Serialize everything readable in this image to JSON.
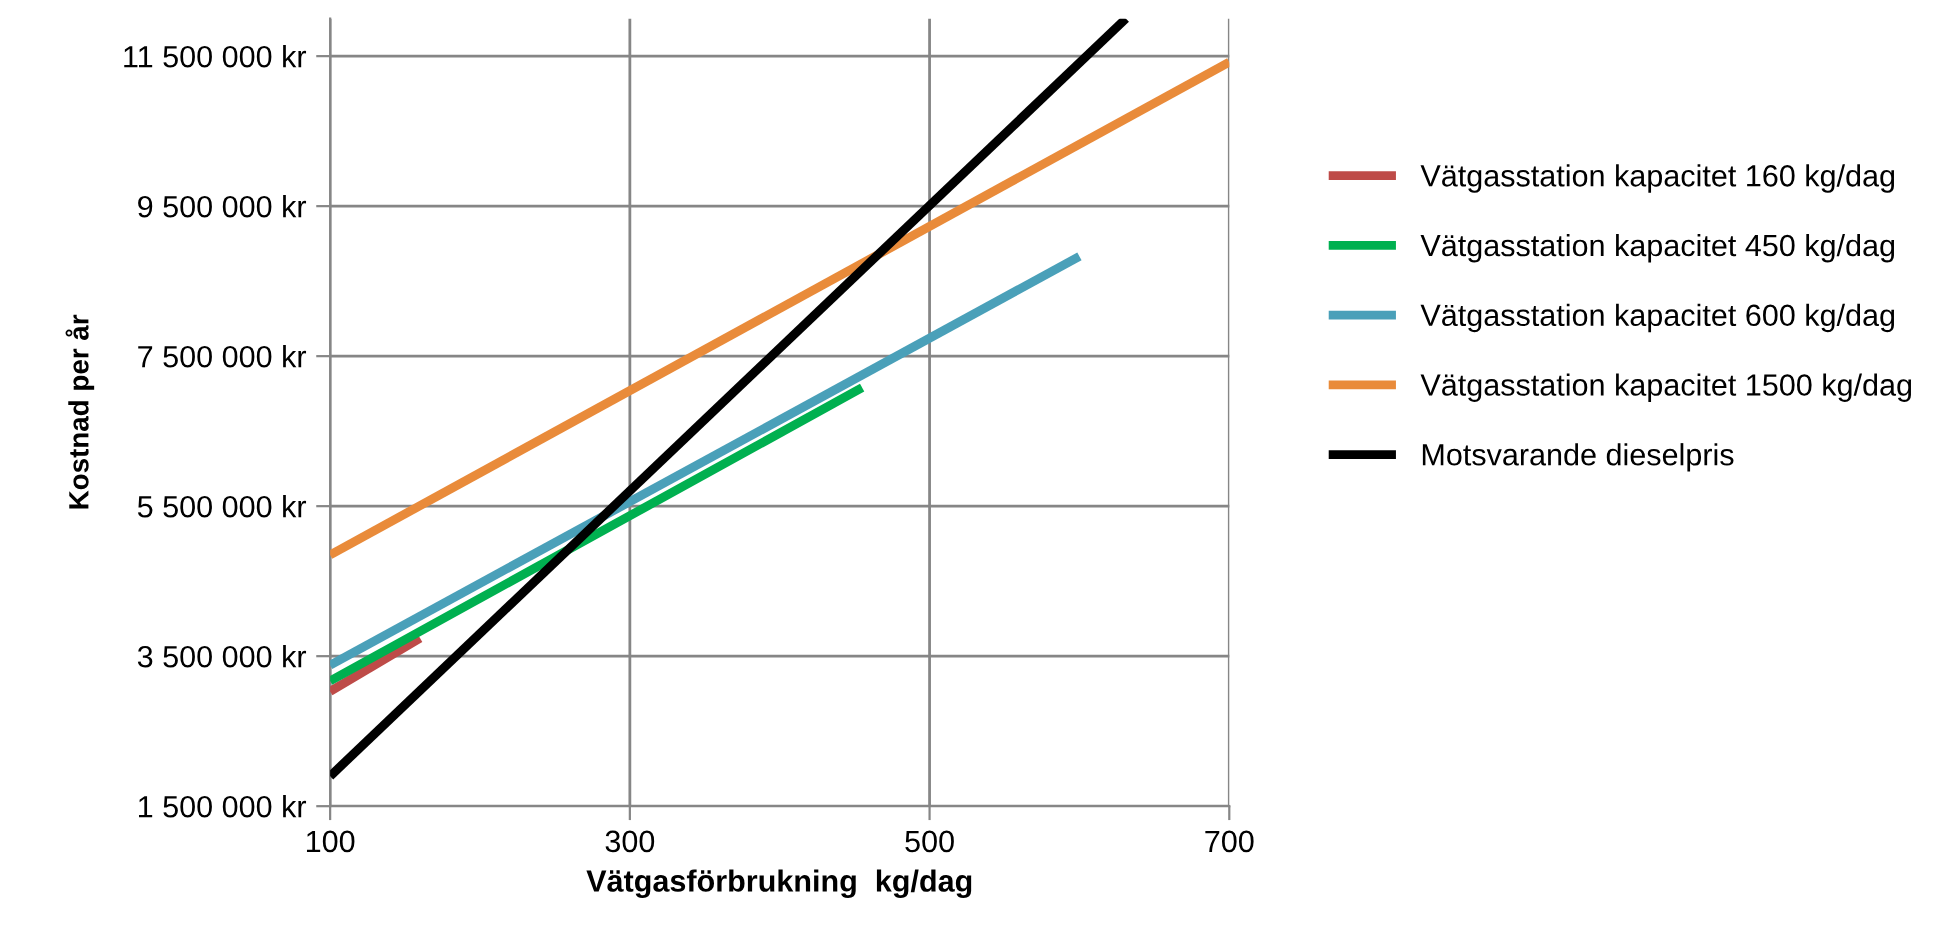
{
  "chart_data": {
    "type": "line",
    "xlabel": "Vätgasförbrukning  kg/dag",
    "ylabel": "Kostnad per år",
    "xlim": [
      100,
      700
    ],
    "xticks": [
      100,
      300,
      500,
      700
    ],
    "ylim": [
      1500000,
      12000000
    ],
    "yticks": [
      {
        "value": 1500000,
        "label": "1 500 000 kr"
      },
      {
        "value": 3500000,
        "label": "3 500 000 kr"
      },
      {
        "value": 5500000,
        "label": "5 500 000 kr"
      },
      {
        "value": 7500000,
        "label": "7 500 000 kr"
      },
      {
        "value": 9500000,
        "label": "9 500 000 kr"
      },
      {
        "value": 11500000,
        "label": "11 500 000 kr"
      }
    ],
    "grid": true,
    "legend": "right",
    "marker": "none",
    "line_style": "solid",
    "series": [
      {
        "name": "Vätgasstation kapacitet 160 kg/dag",
        "color": "#be4b48",
        "x": [
          100,
          160
        ],
        "values": [
          3030000,
          3740000
        ]
      },
      {
        "name": "Vätgasstation kapacitet 450 kg/dag",
        "color": "#00b050",
        "x": [
          100,
          455
        ],
        "values": [
          3170000,
          7080000
        ]
      },
      {
        "name": "Vätgasstation kapacitet 600 kg/dag",
        "color": "#4aa0b9",
        "x": [
          100,
          600
        ],
        "values": [
          3380000,
          8830000
        ]
      },
      {
        "name": "Vätgasstation kapacitet 1500 kg/dag",
        "color": "#e98b3a",
        "x": [
          100,
          700
        ],
        "values": [
          4850000,
          11420000
        ]
      },
      {
        "name": "Motsvarande dieselpris",
        "color": "#000000",
        "x": [
          100,
          631
        ],
        "values": [
          1900000,
          12000000
        ]
      }
    ]
  }
}
